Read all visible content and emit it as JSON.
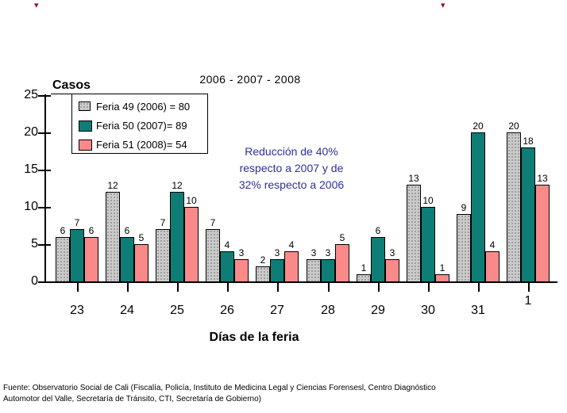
{
  "chart_data": {
    "type": "bar",
    "title": "2006 - 2007 - 2008",
    "y_axis_label": "Casos",
    "x_axis_label": "Días de la feria",
    "ylim": [
      0,
      25
    ],
    "yticks": [
      0,
      5,
      10,
      15,
      20,
      25
    ],
    "grid": false,
    "legend_position": "top-left",
    "bar_value_labels": true,
    "categories": [
      "23",
      "24",
      "25",
      "26",
      "27",
      "28",
      "29",
      "30",
      "31",
      "1"
    ],
    "series": [
      {
        "name": "Feria 49 (2006) = 80",
        "color": "#CBCBCB",
        "pattern": "dotted",
        "total": 80,
        "values": [
          6,
          12,
          7,
          7,
          2,
          3,
          1,
          13,
          9,
          20
        ]
      },
      {
        "name": "Feria 50 (2007)= 89",
        "color": "#0E7D76",
        "pattern": "solid",
        "total": 89,
        "values": [
          7,
          6,
          12,
          4,
          3,
          3,
          6,
          10,
          20,
          18
        ]
      },
      {
        "name": "Feria 51 (2008)= 54",
        "color": "#FA8A8A",
        "pattern": "solid",
        "total": 54,
        "values": [
          6,
          5,
          10,
          3,
          4,
          5,
          3,
          1,
          4,
          13
        ]
      }
    ]
  },
  "annotation": {
    "color": "#2D2FA0",
    "lines": [
      "Reducción de 40%",
      "respecto a 2007 y de",
      "32% respecto a 2006"
    ]
  },
  "footer": {
    "line1": "Fuente: Observatorio Social de Cali (Fiscalía, Policía, Instituto de Medicina Legal y Ciencias Forensesl, Centro Diagnóstico",
    "line2": "Automotor del Valle, Secretaría de Tránsito, CTI, Secretaría de Gobierno)"
  },
  "decor": {
    "corner_mark_color": "#8B1A1A",
    "corner_mark_glyph": "▾"
  }
}
